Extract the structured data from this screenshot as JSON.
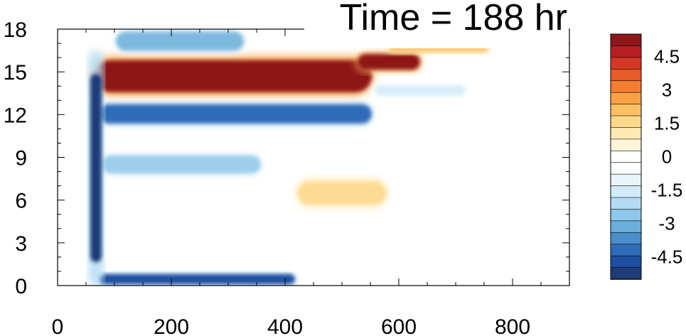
{
  "chart_data": {
    "type": "heatmap",
    "title": "Time = 188 hr",
    "xlabel": "",
    "ylabel": "",
    "xlim": [
      0,
      900
    ],
    "ylim": [
      0,
      18
    ],
    "x_ticks": [
      0,
      200,
      400,
      600,
      800
    ],
    "y_ticks": [
      0,
      3,
      6,
      9,
      12,
      15,
      18
    ],
    "colorbar": {
      "range": [
        -5.5,
        5.5
      ],
      "levels": [
        -5,
        -4.5,
        -4,
        -3.5,
        -3,
        -2.5,
        -2,
        -1.5,
        -1,
        -0.5,
        0,
        0.5,
        1,
        1.5,
        2,
        2.5,
        3,
        3.5,
        4,
        4.5,
        5
      ],
      "labels": [
        "4.5",
        "3",
        "1.5",
        "0",
        "-1.5",
        "-3",
        "-4.5"
      ],
      "label_values": [
        4.5,
        3,
        1.5,
        0,
        -1.5,
        -3,
        -4.5
      ],
      "colors": [
        "#1f3b7a",
        "#1e4fa0",
        "#2e6cb8",
        "#4a8fcb",
        "#6aaedb",
        "#8fc7e8",
        "#b3dcf2",
        "#d2ebf8",
        "#e8f5fb",
        "#ffffff",
        "#ffffff",
        "#fff6da",
        "#ffe9b3",
        "#fdd88a",
        "#fbbf64",
        "#f9a245",
        "#f47d32",
        "#e85a2a",
        "#d43824",
        "#b81f21",
        "#8f1719"
      ]
    },
    "features": [
      {
        "name": "upper positive band",
        "x": [
          62,
          555
        ],
        "y": [
          13.3,
          16.1
        ],
        "value": 6
      },
      {
        "name": "upper positive band (shifted)",
        "x": [
          525,
          640
        ],
        "y": [
          15.0,
          16.4
        ],
        "value": 5
      },
      {
        "name": "negative band",
        "x": [
          70,
          555
        ],
        "y": [
          11.2,
          12.9
        ],
        "value": -4
      },
      {
        "name": "negative band (weak)",
        "x": [
          555,
          720
        ],
        "y": [
          13.2,
          14.2
        ],
        "value": -1.5
      },
      {
        "name": "negative band",
        "x": [
          75,
          360
        ],
        "y": [
          7.7,
          9.3
        ],
        "value": -2.5
      },
      {
        "name": "near-surface negative",
        "x": [
          70,
          420
        ],
        "y": [
          0,
          0.9
        ],
        "value": -4.5
      },
      {
        "name": "vertical front",
        "x": [
          55,
          80
        ],
        "y": [
          0,
          16.5
        ],
        "value": -5
      },
      {
        "name": "positive region",
        "x": [
          420,
          580
        ],
        "y": [
          5.5,
          7.5
        ],
        "value": 1.5
      },
      {
        "name": "top positive patch",
        "x": [
          580,
          760
        ],
        "y": [
          16.3,
          17.0
        ],
        "value": 2
      },
      {
        "name": "top negative patch",
        "x": [
          100,
          330
        ],
        "y": [
          16.3,
          18.0
        ],
        "value": -3
      }
    ]
  }
}
